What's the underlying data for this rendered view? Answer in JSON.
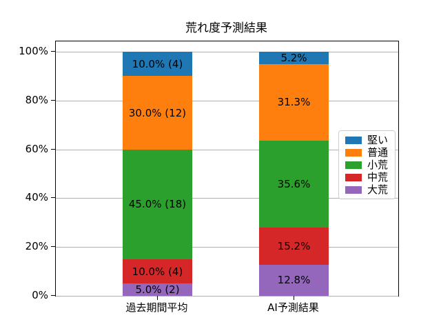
{
  "chart_data": {
    "type": "bar",
    "stacked": true,
    "title": "荒れ度予測結果",
    "categories": [
      "過去期間平均",
      "AI予測結果"
    ],
    "series": [
      {
        "name": "堅い",
        "color": "#1f77b4",
        "values": [
          10.0,
          5.2
        ],
        "segment_labels": [
          "10.0% (4)",
          "5.2%"
        ]
      },
      {
        "name": "普通",
        "color": "#ff7f0e",
        "values": [
          30.0,
          31.3
        ],
        "segment_labels": [
          "30.0% (12)",
          "31.3%"
        ]
      },
      {
        "name": "小荒",
        "color": "#2ca02c",
        "values": [
          45.0,
          35.6
        ],
        "segment_labels": [
          "45.0% (18)",
          "35.6%"
        ]
      },
      {
        "name": "中荒",
        "color": "#d62728",
        "values": [
          10.0,
          15.2
        ],
        "segment_labels": [
          "10.0% (4)",
          "15.2%"
        ]
      },
      {
        "name": "大荒",
        "color": "#9467bd",
        "values": [
          5.0,
          12.8
        ],
        "segment_labels": [
          "5.0% (2)",
          "12.8%"
        ]
      }
    ],
    "stack_bottom_to_top": [
      "大荒",
      "中荒",
      "小荒",
      "普通",
      "堅い"
    ],
    "yticks": [
      {
        "label": "0%",
        "value": 0
      },
      {
        "label": "20%",
        "value": 20
      },
      {
        "label": "40%",
        "value": 40
      },
      {
        "label": "60%",
        "value": 60
      },
      {
        "label": "80%",
        "value": 80
      },
      {
        "label": "100%",
        "value": 100
      }
    ],
    "xlabel": "",
    "ylabel": "",
    "ylim": [
      0,
      104.5
    ],
    "grid": true,
    "grid_color": "#b0b0b0",
    "text_color": "#000000",
    "legend_position": "center-right-inside",
    "legend_entries": [
      "堅い",
      "普通",
      "小荒",
      "中荒",
      "大荒"
    ]
  }
}
